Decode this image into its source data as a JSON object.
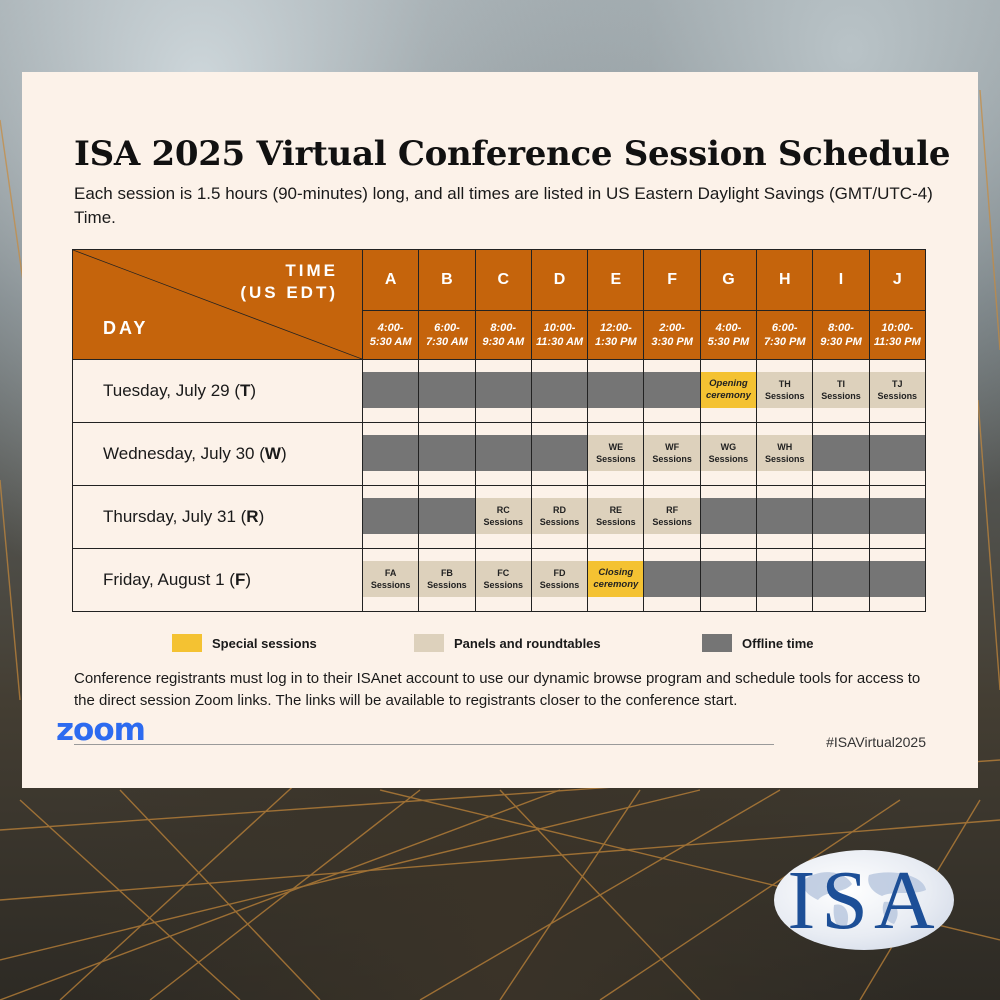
{
  "title": "ISA 2025 Virtual Conference Session Schedule",
  "subtitle": "Each session is 1.5 hours (90-minutes) long, and all times are listed in US Eastern Daylight Savings (GMT/UTC-4) Time.",
  "table": {
    "corner_time_line1": "TIME",
    "corner_time_line2": "(US EDT)",
    "corner_day": "DAY",
    "columns": [
      {
        "letter": "A",
        "time1": "4:00-",
        "time2": "5:30 AM"
      },
      {
        "letter": "B",
        "time1": "6:00-",
        "time2": "7:30 AM"
      },
      {
        "letter": "C",
        "time1": "8:00-",
        "time2": "9:30 AM"
      },
      {
        "letter": "D",
        "time1": "10:00-",
        "time2": "11:30 AM"
      },
      {
        "letter": "E",
        "time1": "12:00-",
        "time2": "1:30 PM"
      },
      {
        "letter": "F",
        "time1": "2:00-",
        "time2": "3:30 PM"
      },
      {
        "letter": "G",
        "time1": "4:00-",
        "time2": "5:30 PM"
      },
      {
        "letter": "H",
        "time1": "6:00-",
        "time2": "7:30 PM"
      },
      {
        "letter": "I",
        "time1": "8:00-",
        "time2": "9:30 PM"
      },
      {
        "letter": "J",
        "time1": "10:00-",
        "time2": "11:30 PM"
      }
    ],
    "rows": [
      {
        "day": "Tuesday, July 29 (",
        "code": "T",
        "close": ")",
        "cells": [
          {
            "type": "off",
            "line1": "",
            "line2": ""
          },
          {
            "type": "off",
            "line1": "",
            "line2": ""
          },
          {
            "type": "off",
            "line1": "",
            "line2": ""
          },
          {
            "type": "off",
            "line1": "",
            "line2": ""
          },
          {
            "type": "off",
            "line1": "",
            "line2": ""
          },
          {
            "type": "off",
            "line1": "",
            "line2": ""
          },
          {
            "type": "special",
            "line1": "Opening",
            "line2": "ceremony"
          },
          {
            "type": "panel",
            "line1": "TH",
            "line2": "Sessions"
          },
          {
            "type": "panel",
            "line1": "TI",
            "line2": "Sessions"
          },
          {
            "type": "panel",
            "line1": "TJ",
            "line2": "Sessions"
          }
        ]
      },
      {
        "day": "Wednesday, July 30 (",
        "code": "W",
        "close": ")",
        "cells": [
          {
            "type": "off",
            "line1": "",
            "line2": ""
          },
          {
            "type": "off",
            "line1": "",
            "line2": ""
          },
          {
            "type": "off",
            "line1": "",
            "line2": ""
          },
          {
            "type": "off",
            "line1": "",
            "line2": ""
          },
          {
            "type": "panel",
            "line1": "WE",
            "line2": "Sessions"
          },
          {
            "type": "panel",
            "line1": "WF",
            "line2": "Sessions"
          },
          {
            "type": "panel",
            "line1": "WG",
            "line2": "Sessions"
          },
          {
            "type": "panel",
            "line1": "WH",
            "line2": "Sessions"
          },
          {
            "type": "off",
            "line1": "",
            "line2": ""
          },
          {
            "type": "off",
            "line1": "",
            "line2": ""
          }
        ]
      },
      {
        "day": "Thursday, July 31 (",
        "code": "R",
        "close": ")",
        "cells": [
          {
            "type": "off",
            "line1": "",
            "line2": ""
          },
          {
            "type": "off",
            "line1": "",
            "line2": ""
          },
          {
            "type": "panel",
            "line1": "RC",
            "line2": "Sessions"
          },
          {
            "type": "panel",
            "line1": "RD",
            "line2": "Sessions"
          },
          {
            "type": "panel",
            "line1": "RE",
            "line2": "Sessions"
          },
          {
            "type": "panel",
            "line1": "RF",
            "line2": "Sessions"
          },
          {
            "type": "off",
            "line1": "",
            "line2": ""
          },
          {
            "type": "off",
            "line1": "",
            "line2": ""
          },
          {
            "type": "off",
            "line1": "",
            "line2": ""
          },
          {
            "type": "off",
            "line1": "",
            "line2": ""
          }
        ]
      },
      {
        "day": "Friday, August 1 (",
        "code": "F",
        "close": ")",
        "cells": [
          {
            "type": "panel",
            "line1": "FA",
            "line2": "Sessions"
          },
          {
            "type": "panel",
            "line1": "FB",
            "line2": "Sessions"
          },
          {
            "type": "panel",
            "line1": "FC",
            "line2": "Sessions"
          },
          {
            "type": "panel",
            "line1": "FD",
            "line2": "Sessions"
          },
          {
            "type": "special",
            "line1": "Closing",
            "line2": "ceremony"
          },
          {
            "type": "off",
            "line1": "",
            "line2": ""
          },
          {
            "type": "off",
            "line1": "",
            "line2": ""
          },
          {
            "type": "off",
            "line1": "",
            "line2": ""
          },
          {
            "type": "off",
            "line1": "",
            "line2": ""
          },
          {
            "type": "off",
            "line1": "",
            "line2": ""
          }
        ]
      }
    ]
  },
  "legend": {
    "special": "Special sessions",
    "panels": "Panels and roundtables",
    "offline": "Offline time"
  },
  "colors": {
    "header": "#c5640c",
    "special": "#f4c232",
    "panel": "#ddd1bc",
    "offline": "#757575",
    "card": "#fcf2e9"
  },
  "note": "Conference registrants must log in to their ISAnet account to use our dynamic browse program and schedule tools for access to the direct session Zoom links. The links will be available to registrants closer to the conference start.",
  "zoom_logo": "zoom",
  "hashtag": "#ISAVirtual2025",
  "isa_logo": "ISA"
}
